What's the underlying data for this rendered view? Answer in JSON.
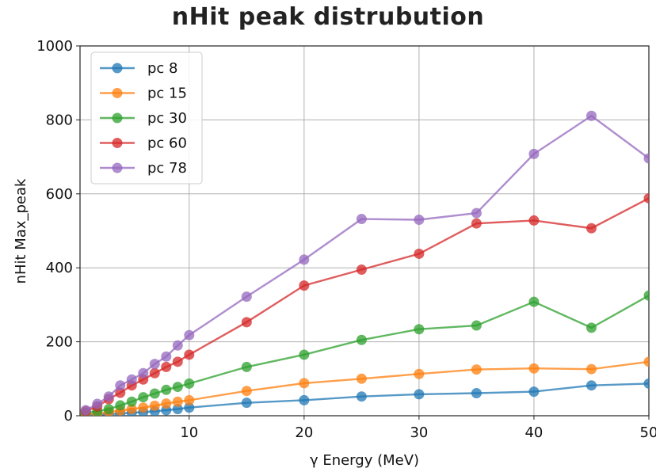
{
  "chart_data": {
    "type": "line",
    "title": "nHit peak distrubution",
    "xlabel": "γ Energy (MeV)",
    "ylabel": "nHit Max_peak",
    "xlim": [
      0.5,
      50
    ],
    "ylim": [
      0,
      1000
    ],
    "xticks": [
      10,
      20,
      30,
      40,
      50
    ],
    "yticks": [
      0,
      200,
      400,
      600,
      800,
      1000
    ],
    "grid": true,
    "legend_position": "top-left",
    "series": [
      {
        "name": "pc 8",
        "color": "#1f77b4",
        "x": [
          1,
          2,
          3,
          4,
          5,
          6,
          7,
          8,
          9,
          10,
          15,
          20,
          25,
          30,
          35,
          40,
          45,
          50
        ],
        "y": [
          2,
          3,
          4,
          6,
          8,
          10,
          12,
          15,
          18,
          22,
          35,
          42,
          52,
          58,
          61,
          65,
          82,
          87
        ]
      },
      {
        "name": "pc 15",
        "color": "#ff7f0e",
        "x": [
          1,
          2,
          3,
          4,
          5,
          6,
          7,
          8,
          9,
          10,
          15,
          20,
          25,
          30,
          35,
          40,
          45,
          50
        ],
        "y": [
          4,
          6,
          10,
          14,
          18,
          22,
          27,
          33,
          38,
          42,
          67,
          88,
          100,
          113,
          125,
          128,
          126,
          146
        ]
      },
      {
        "name": "pc 30",
        "color": "#2ca02c",
        "x": [
          1,
          2,
          3,
          4,
          5,
          6,
          7,
          8,
          9,
          10,
          15,
          20,
          25,
          30,
          35,
          40,
          45,
          50
        ],
        "y": [
          8,
          12,
          18,
          28,
          38,
          50,
          60,
          70,
          78,
          87,
          132,
          165,
          205,
          234,
          244,
          308,
          238,
          325
        ]
      },
      {
        "name": "pc 60",
        "color": "#d62728",
        "x": [
          1,
          2,
          3,
          4,
          5,
          6,
          7,
          8,
          9,
          10,
          15,
          20,
          25,
          30,
          35,
          40,
          45,
          50
        ],
        "y": [
          12,
          25,
          45,
          62,
          82,
          98,
          115,
          132,
          146,
          165,
          253,
          352,
          395,
          438,
          520,
          528,
          507,
          588
        ]
      },
      {
        "name": "pc 78",
        "color": "#9467bd",
        "x": [
          1,
          2,
          3,
          4,
          5,
          6,
          7,
          8,
          9,
          10,
          15,
          20,
          25,
          30,
          35,
          40,
          45,
          50
        ],
        "y": [
          15,
          32,
          52,
          82,
          98,
          115,
          140,
          160,
          190,
          218,
          322,
          422,
          532,
          530,
          548,
          708,
          811,
          696
        ]
      }
    ]
  }
}
